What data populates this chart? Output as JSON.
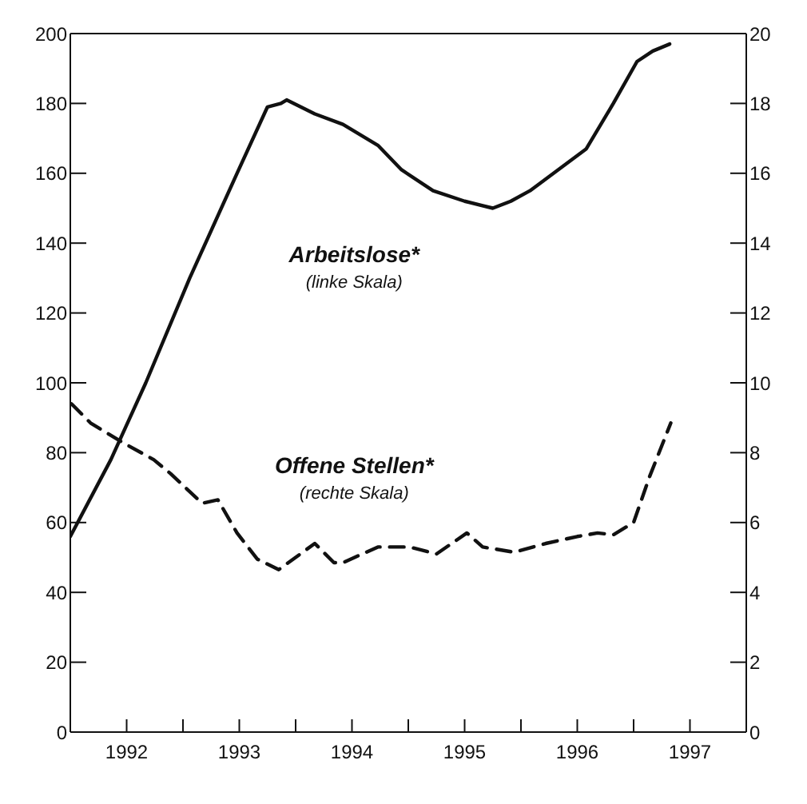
{
  "chart_data": {
    "type": "line",
    "xlim": [
      1992,
      1998
    ],
    "xticks": [
      {
        "value": 1992.5,
        "label": "1992"
      },
      {
        "value": 1993,
        "label": null
      },
      {
        "value": 1993.5,
        "label": "1993"
      },
      {
        "value": 1994,
        "label": null
      },
      {
        "value": 1994.5,
        "label": "1994"
      },
      {
        "value": 1995,
        "label": null
      },
      {
        "value": 1995.5,
        "label": "1995"
      },
      {
        "value": 1996,
        "label": null
      },
      {
        "value": 1996.5,
        "label": "1996"
      },
      {
        "value": 1997,
        "label": null
      },
      {
        "value": 1997.5,
        "label": "1997"
      }
    ],
    "ylim": [
      0,
      200
    ],
    "yticks": [
      0,
      20,
      40,
      60,
      80,
      100,
      120,
      140,
      160,
      180,
      200
    ],
    "y2lim": [
      0,
      20
    ],
    "y2ticks": [
      0,
      2,
      4,
      6,
      8,
      10,
      12,
      14,
      16,
      18,
      20
    ],
    "marker": "none",
    "annotations": [
      "(linke Skala)",
      "(rechte Skala)"
    ],
    "series": [
      {
        "name": "Arbeitslose*",
        "color": "#111111",
        "line_style": "solid",
        "x": [
          1992.0,
          1992.36,
          1992.67,
          1993.06,
          1993.48,
          1993.75,
          1993.87,
          1993.92,
          1994.17,
          1994.42,
          1994.73,
          1994.94,
          1995.22,
          1995.5,
          1995.75,
          1995.91,
          1996.08,
          1996.33,
          1996.58,
          1996.82,
          1997.03,
          1997.17,
          1997.32
        ],
        "values": [
          56,
          78,
          100,
          130,
          160,
          179,
          180,
          181,
          177,
          174,
          168,
          161,
          155,
          152,
          150,
          152,
          155,
          161,
          167,
          180,
          192,
          195,
          197
        ]
      },
      {
        "name": "Offene Stellen*",
        "color": "#111111",
        "line_style": "dashed",
        "axis": "y2",
        "x": [
          1992.01,
          1992.18,
          1992.46,
          1992.74,
          1992.89,
          1993.17,
          1993.31,
          1993.48,
          1993.66,
          1993.85,
          1994.17,
          1994.34,
          1994.42,
          1994.73,
          1995.01,
          1995.25,
          1995.52,
          1995.66,
          1995.94,
          1996.22,
          1996.5,
          1996.68,
          1996.82,
          1997.0,
          1997.14,
          1997.33
        ],
        "values": [
          9.4,
          8.85,
          8.3,
          7.8,
          7.4,
          6.55,
          6.65,
          5.7,
          4.95,
          4.65,
          5.4,
          4.85,
          4.85,
          5.3,
          5.3,
          5.1,
          5.7,
          5.3,
          5.15,
          5.4,
          5.6,
          5.7,
          5.65,
          6.0,
          7.3,
          8.85
        ]
      }
    ]
  }
}
